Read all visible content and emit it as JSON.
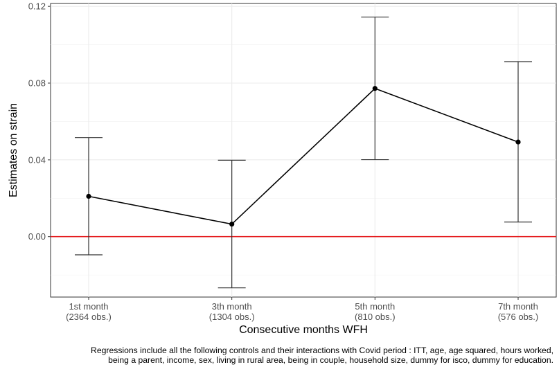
{
  "chart_data": {
    "type": "line",
    "title": "",
    "xlabel": "Consecutive months WFH",
    "ylabel": "Estimates on strain",
    "categories": [
      [
        "1st month",
        "(2364 obs.)"
      ],
      [
        "3th month",
        "(1304 obs.)"
      ],
      [
        "5th month",
        "(810 obs.)"
      ],
      [
        "7th month",
        "(576 obs.)"
      ]
    ],
    "series": [
      {
        "values": [
          0.021,
          0.0065,
          0.0772,
          0.0493
        ],
        "ci_low": [
          -0.0095,
          -0.0267,
          0.0401,
          0.0076
        ],
        "ci_high": [
          0.0516,
          0.0398,
          0.1144,
          0.0912
        ]
      }
    ],
    "reference_line": {
      "y": 0,
      "color": "#e41a1c"
    },
    "ylim": [
      -0.0315,
      0.1215
    ],
    "yticks": [
      0.0,
      0.04,
      0.08,
      0.12
    ],
    "ytick_labels": [
      "0.00",
      "0.04",
      "0.08",
      "0.12"
    ],
    "grid": true,
    "legend": "none"
  },
  "caption": "Regressions include all the following controls and their interactions with Covid period : ITT, age, age squared, hours worked, being a  parent, income, sex, living in rural area,  being in couple, household size, dummy  for isco, dummy for education."
}
